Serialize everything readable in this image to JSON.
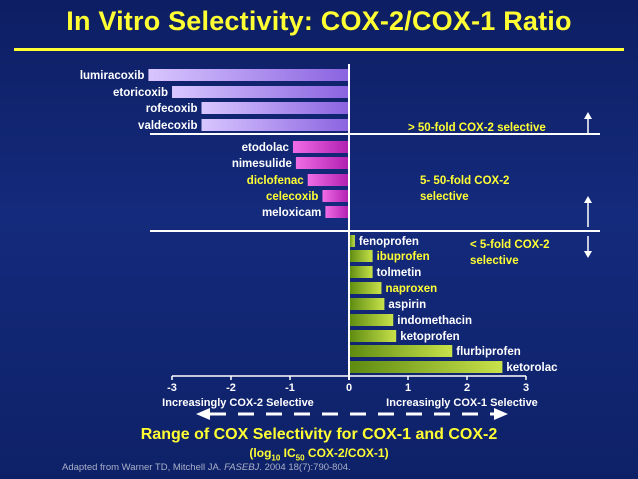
{
  "title": "In Vitro Selectivity: COX-2/COX-1 Ratio",
  "chart_data": {
    "type": "bar",
    "orientation": "horizontal",
    "xlim": [
      -3.3,
      3.3
    ],
    "xticks": [
      -3,
      -2,
      -1,
      0,
      1,
      2,
      3
    ],
    "xtick_labels": [
      "-3",
      "-2",
      "-1",
      "0",
      "1",
      "2",
      "3"
    ],
    "categories": [
      "lumiracoxib",
      "etoricoxib",
      "rofecoxib",
      "valdecoxib",
      "etodolac",
      "nimesulide",
      "diclofenac",
      "celecoxib",
      "meloxicam",
      "fenoprofen",
      "ibuprofen",
      "tolmetin",
      "naproxen",
      "aspirin",
      "indomethacin",
      "ketoprofen",
      "flurbiprofen",
      "ketorolac"
    ],
    "values": [
      -3.4,
      -3.0,
      -2.5,
      -2.5,
      -0.95,
      -0.9,
      -0.7,
      -0.45,
      -0.4,
      0.1,
      0.4,
      0.4,
      0.55,
      0.6,
      0.75,
      0.8,
      1.75,
      2.6
    ],
    "label_colors": [
      "#ffffff",
      "#ffffff",
      "#ffffff",
      "#ffffff",
      "#ffffff",
      "#ffffff",
      "#ffff33",
      "#ffff33",
      "#ffffff",
      "#ffffff",
      "#ffff33",
      "#ffffff",
      "#ffff33",
      "#ffffff",
      "#ffffff",
      "#ffffff",
      "#ffffff",
      "#ffffff"
    ],
    "groups": [
      {
        "label": "> 50-fold COX-2 selective",
        "color": "#b99bf2"
      },
      {
        "label": "5- 50-fold COX-2 selective",
        "color": "#e048d8"
      },
      {
        "label": "< 5-fold COX-2 selective",
        "color": "#9fc826"
      }
    ],
    "axis_left_label": "Increasingly COX-2 Selective",
    "axis_right_label": "Increasingly COX-1 Selective",
    "caption": "Range of COX Selectivity for COX-1 and COX-2",
    "subcaption_pre": "(log",
    "subcaption_sub1": "10",
    "subcaption_mid": " IC",
    "subcaption_sub2": "50",
    "subcaption_post": " COX-2/COX-1)"
  },
  "source_prefix": "Adapted from Warner TD, Mitchell JA. ",
  "source_journal": "FASEBJ",
  "source_suffix": ". 2004 18(7):790-804."
}
